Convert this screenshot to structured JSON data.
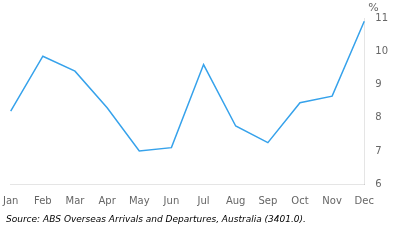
{
  "chart_data": {
    "type": "line",
    "categories": [
      "Jan",
      "Feb",
      "Mar",
      "Apr",
      "May",
      "Jun",
      "Jul",
      "Aug",
      "Sep",
      "Oct",
      "Nov",
      "Dec"
    ],
    "values": [
      8.2,
      9.85,
      9.4,
      8.3,
      7.0,
      7.1,
      9.6,
      7.75,
      7.25,
      8.45,
      8.65,
      10.9
    ],
    "ylim": [
      6,
      11
    ],
    "yticks": [
      6,
      7,
      8,
      9,
      10,
      11
    ],
    "ylabel": "%",
    "source": "Source: ABS Overseas Arrivals and Departures, Australia (3401.0).",
    "marker": "none",
    "grid": false
  }
}
